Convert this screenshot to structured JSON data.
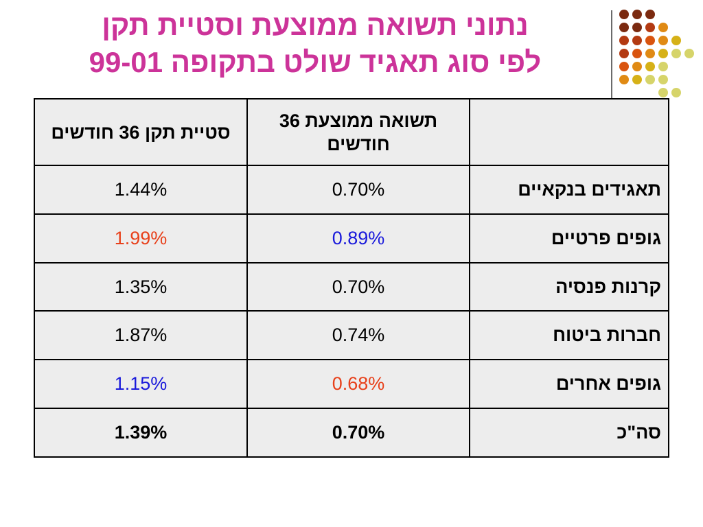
{
  "slide": {
    "title_line1": "נתוני תשואה ממוצעת וסטיית תקן",
    "title_line2": "לפי סוג תאגיד שולט בתקופה 99-01",
    "title_color": "#cc3399"
  },
  "decoration": {
    "dot_colors": [
      "#7b2a10",
      "#b33a12",
      "#d9540f",
      "#e08a14",
      "#d6b117",
      "#d6d46a"
    ]
  },
  "table": {
    "headers": {
      "label": "",
      "avg_return": "תשואה ממוצעת 36 חודשים",
      "std_dev": "סטיית תקן 36 חודשים"
    },
    "rows": [
      {
        "label": "תאגידים בנקאיים",
        "avg_return": "0.70%",
        "avg_return_color": "#000000",
        "std_dev": "1.44%",
        "std_dev_color": "#000000"
      },
      {
        "label": "גופים פרטיים",
        "avg_return": "0.89%",
        "avg_return_color": "#1a1adb",
        "std_dev": "1.99%",
        "std_dev_color": "#e8401a"
      },
      {
        "label": "קרנות פנסיה",
        "avg_return": "0.70%",
        "avg_return_color": "#000000",
        "std_dev": "1.35%",
        "std_dev_color": "#000000"
      },
      {
        "label": "חברות ביטוח",
        "avg_return": "0.74%",
        "avg_return_color": "#000000",
        "std_dev": "1.87%",
        "std_dev_color": "#000000"
      },
      {
        "label": "גופים אחרים",
        "avg_return": "0.68%",
        "avg_return_color": "#e8401a",
        "std_dev": "1.15%",
        "std_dev_color": "#1a1adb"
      },
      {
        "label": "סה\"כ",
        "avg_return": "0.70%",
        "avg_return_color": "#000000",
        "std_dev": "1.39%",
        "std_dev_color": "#000000"
      }
    ]
  }
}
